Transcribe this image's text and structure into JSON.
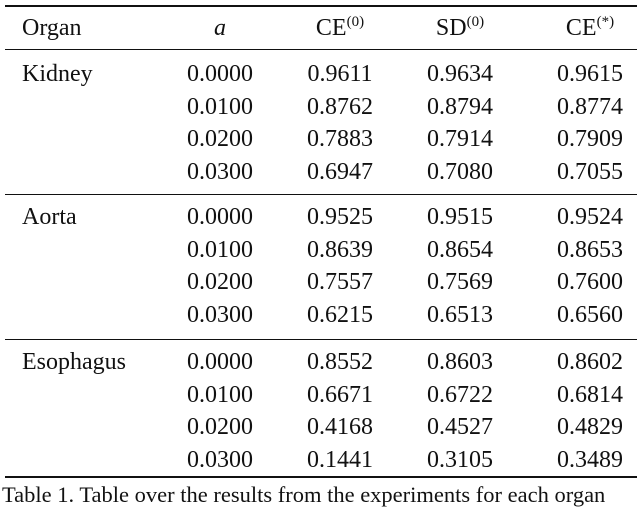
{
  "table": {
    "headers": {
      "organ": "Organ",
      "a": "a",
      "ce0": "CE",
      "ce0_sup": "(0)",
      "sd0": "SD",
      "sd0_sup": "(0)",
      "cestar": "CE",
      "cestar_sup": "(*)"
    },
    "groups": [
      {
        "organ": "Kidney",
        "rows": [
          [
            "0.0000",
            "0.9611",
            "0.9634",
            "0.9615"
          ],
          [
            "0.0100",
            "0.8762",
            "0.8794",
            "0.8774"
          ],
          [
            "0.0200",
            "0.7883",
            "0.7914",
            "0.7909"
          ],
          [
            "0.0300",
            "0.6947",
            "0.7080",
            "0.7055"
          ]
        ]
      },
      {
        "organ": "Aorta",
        "rows": [
          [
            "0.0000",
            "0.9525",
            "0.9515",
            "0.9524"
          ],
          [
            "0.0100",
            "0.8639",
            "0.8654",
            "0.8653"
          ],
          [
            "0.0200",
            "0.7557",
            "0.7569",
            "0.7600"
          ],
          [
            "0.0300",
            "0.6215",
            "0.6513",
            "0.6560"
          ]
        ]
      },
      {
        "organ": "Esophagus",
        "rows": [
          [
            "0.0000",
            "0.8552",
            "0.8603",
            "0.8602"
          ],
          [
            "0.0100",
            "0.6671",
            "0.6722",
            "0.6814"
          ],
          [
            "0.0200",
            "0.4168",
            "0.4527",
            "0.4829"
          ],
          [
            "0.0300",
            "0.1441",
            "0.3105",
            "0.3489"
          ]
        ]
      }
    ]
  },
  "caption": "Table 1. Table over the results from the experiments for each organ"
}
